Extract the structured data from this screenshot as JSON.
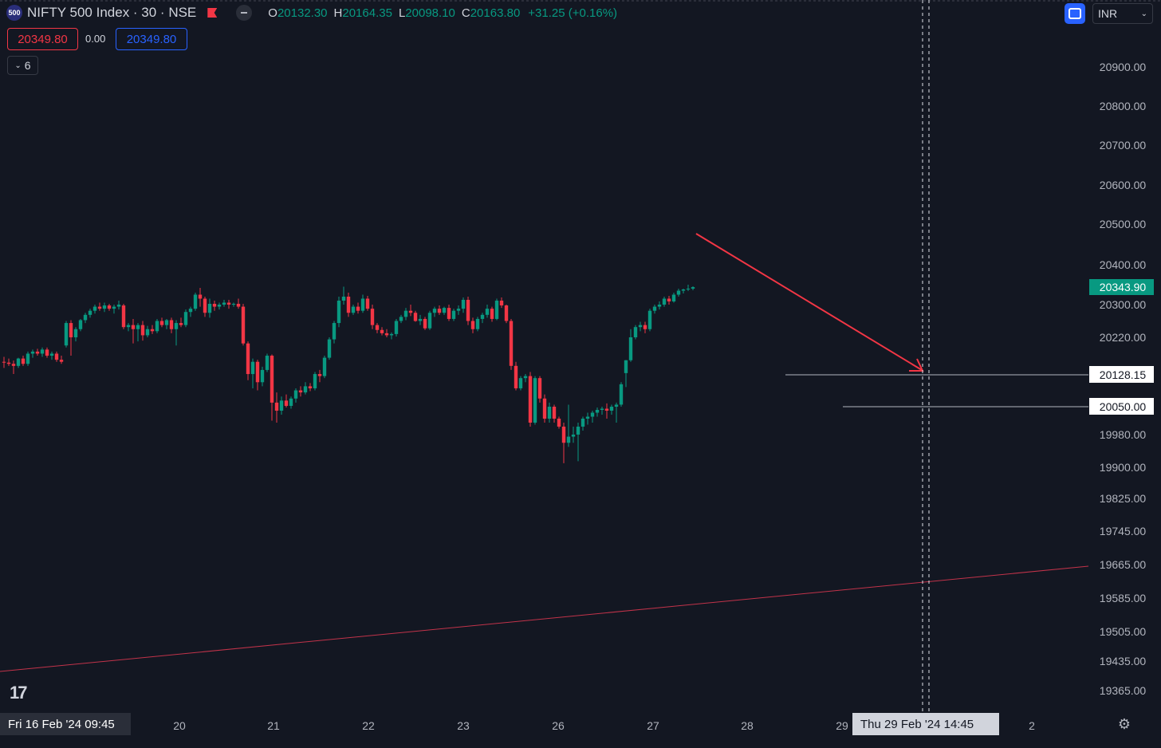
{
  "header": {
    "symbol_badge": "500",
    "symbol_title": "NIFTY 500 Index · 30 · NSE",
    "ohlc": {
      "o_label": "O",
      "o_value": "20132.30",
      "h_label": "H",
      "h_value": "20164.35",
      "l_label": "L",
      "l_value": "20098.10",
      "c_label": "C",
      "c_value": "20163.80",
      "change": "+31.25 (+0.16%)"
    }
  },
  "trade": {
    "sell_price": "20349.80",
    "spread": "0.00",
    "buy_price": "20349.80"
  },
  "indicators_toggle": {
    "count": "6",
    "icon": "chevron-down-icon"
  },
  "toolbar": {
    "fullscreen_icon": "fullscreen-icon",
    "currency": "INR",
    "currency_icon": "chevron-down-icon"
  },
  "logo": {
    "text": "17",
    "icon": "tradingview-logo-icon"
  },
  "time_axis": {
    "left_label": "Fri 16 Feb '24   09:45",
    "cursor_label": "Thu 29 Feb '24   14:45",
    "settings_icon": "settings-gear-icon"
  },
  "colors": {
    "up": "#089981",
    "down": "#f23645",
    "background": "#131722",
    "arrow": "#f23645",
    "trendline": "#c2334a"
  },
  "chart_data": {
    "type": "candlestick",
    "title": "NIFTY 500 Index · 30 · NSE",
    "xlabel": "",
    "ylabel": "",
    "y_ticks": [
      20900,
      20800,
      20700,
      20600,
      20500,
      20400,
      20300,
      20220,
      19980,
      19900,
      19825,
      19745,
      19665,
      19585,
      19505,
      19435,
      19365
    ],
    "y_axis_scale": "log",
    "x_ticks": [
      "20",
      "21",
      "22",
      "23",
      "26",
      "27",
      "28",
      "29",
      "2"
    ],
    "last_price": "20343.90",
    "price_labels": [
      "20128.15",
      "20050.00"
    ],
    "horizontal_levels": [
      20128.15,
      20050.0
    ],
    "grid": false,
    "candles": [
      {
        "o": 20160,
        "h": 20172,
        "l": 20145,
        "c": 20158
      },
      {
        "o": 20158,
        "h": 20168,
        "l": 20150,
        "c": 20155
      },
      {
        "o": 20155,
        "h": 20163,
        "l": 20130,
        "c": 20150
      },
      {
        "o": 20150,
        "h": 20170,
        "l": 20145,
        "c": 20168
      },
      {
        "o": 20168,
        "h": 20175,
        "l": 20150,
        "c": 20155
      },
      {
        "o": 20155,
        "h": 20185,
        "l": 20150,
        "c": 20180
      },
      {
        "o": 20180,
        "h": 20190,
        "l": 20170,
        "c": 20185
      },
      {
        "o": 20185,
        "h": 20192,
        "l": 20175,
        "c": 20180
      },
      {
        "o": 20180,
        "h": 20195,
        "l": 20172,
        "c": 20190
      },
      {
        "o": 20190,
        "h": 20195,
        "l": 20170,
        "c": 20175
      },
      {
        "o": 20175,
        "h": 20185,
        "l": 20165,
        "c": 20180
      },
      {
        "o": 20180,
        "h": 20185,
        "l": 20160,
        "c": 20165
      },
      {
        "o": 20165,
        "h": 20175,
        "l": 20155,
        "c": 20160
      },
      {
        "o": 20200,
        "h": 20260,
        "l": 20195,
        "c": 20255
      },
      {
        "o": 20255,
        "h": 20262,
        "l": 20175,
        "c": 20220
      },
      {
        "o": 20220,
        "h": 20245,
        "l": 20210,
        "c": 20240
      },
      {
        "o": 20240,
        "h": 20265,
        "l": 20235,
        "c": 20262
      },
      {
        "o": 20262,
        "h": 20280,
        "l": 20255,
        "c": 20275
      },
      {
        "o": 20275,
        "h": 20290,
        "l": 20268,
        "c": 20285
      },
      {
        "o": 20285,
        "h": 20300,
        "l": 20278,
        "c": 20295
      },
      {
        "o": 20295,
        "h": 20305,
        "l": 20285,
        "c": 20290
      },
      {
        "o": 20290,
        "h": 20305,
        "l": 20282,
        "c": 20298
      },
      {
        "o": 20298,
        "h": 20302,
        "l": 20285,
        "c": 20290
      },
      {
        "o": 20290,
        "h": 20300,
        "l": 20278,
        "c": 20295
      },
      {
        "o": 20295,
        "h": 20310,
        "l": 20288,
        "c": 20300
      },
      {
        "o": 20298,
        "h": 20302,
        "l": 20240,
        "c": 20245
      },
      {
        "o": 20245,
        "h": 20255,
        "l": 20235,
        "c": 20250
      },
      {
        "o": 20250,
        "h": 20265,
        "l": 20205,
        "c": 20240
      },
      {
        "o": 20240,
        "h": 20255,
        "l": 20210,
        "c": 20250
      },
      {
        "o": 20250,
        "h": 20260,
        "l": 20212,
        "c": 20225
      },
      {
        "o": 20225,
        "h": 20248,
        "l": 20220,
        "c": 20240
      },
      {
        "o": 20240,
        "h": 20250,
        "l": 20228,
        "c": 20235
      },
      {
        "o": 20235,
        "h": 20265,
        "l": 20230,
        "c": 20260
      },
      {
        "o": 20260,
        "h": 20268,
        "l": 20245,
        "c": 20250
      },
      {
        "o": 20250,
        "h": 20265,
        "l": 20240,
        "c": 20262
      },
      {
        "o": 20262,
        "h": 20268,
        "l": 20230,
        "c": 20240
      },
      {
        "o": 20240,
        "h": 20262,
        "l": 20200,
        "c": 20255
      },
      {
        "o": 20255,
        "h": 20268,
        "l": 20245,
        "c": 20250
      },
      {
        "o": 20250,
        "h": 20288,
        "l": 20245,
        "c": 20282
      },
      {
        "o": 20282,
        "h": 20295,
        "l": 20270,
        "c": 20290
      },
      {
        "o": 20290,
        "h": 20330,
        "l": 20285,
        "c": 20325
      },
      {
        "o": 20325,
        "h": 20342,
        "l": 20295,
        "c": 20315
      },
      {
        "o": 20315,
        "h": 20320,
        "l": 20270,
        "c": 20280
      },
      {
        "o": 20280,
        "h": 20315,
        "l": 20268,
        "c": 20302
      },
      {
        "o": 20302,
        "h": 20310,
        "l": 20285,
        "c": 20295
      },
      {
        "o": 20295,
        "h": 20305,
        "l": 20288,
        "c": 20300
      },
      {
        "o": 20300,
        "h": 20312,
        "l": 20295,
        "c": 20305
      },
      {
        "o": 20305,
        "h": 20312,
        "l": 20290,
        "c": 20300
      },
      {
        "o": 20300,
        "h": 20305,
        "l": 20295,
        "c": 20302
      },
      {
        "o": 20302,
        "h": 20315,
        "l": 20290,
        "c": 20295
      },
      {
        "o": 20295,
        "h": 20302,
        "l": 20200,
        "c": 20205
      },
      {
        "o": 20205,
        "h": 20210,
        "l": 20115,
        "c": 20130
      },
      {
        "o": 20130,
        "h": 20168,
        "l": 20095,
        "c": 20160
      },
      {
        "o": 20160,
        "h": 20165,
        "l": 20090,
        "c": 20110
      },
      {
        "o": 20110,
        "h": 20148,
        "l": 20100,
        "c": 20140
      },
      {
        "o": 20140,
        "h": 20180,
        "l": 20135,
        "c": 20175
      },
      {
        "o": 20175,
        "h": 20178,
        "l": 20015,
        "c": 20060
      },
      {
        "o": 20060,
        "h": 20085,
        "l": 20010,
        "c": 20040
      },
      {
        "o": 20040,
        "h": 20075,
        "l": 20030,
        "c": 20065
      },
      {
        "o": 20065,
        "h": 20080,
        "l": 20048,
        "c": 20052
      },
      {
        "o": 20052,
        "h": 20075,
        "l": 20045,
        "c": 20070
      },
      {
        "o": 20070,
        "h": 20095,
        "l": 20060,
        "c": 20090
      },
      {
        "o": 20090,
        "h": 20100,
        "l": 20075,
        "c": 20085
      },
      {
        "o": 20085,
        "h": 20110,
        "l": 20080,
        "c": 20100
      },
      {
        "o": 20100,
        "h": 20108,
        "l": 20088,
        "c": 20095
      },
      {
        "o": 20095,
        "h": 20135,
        "l": 20090,
        "c": 20130
      },
      {
        "o": 20130,
        "h": 20140,
        "l": 20110,
        "c": 20125
      },
      {
        "o": 20125,
        "h": 20175,
        "l": 20120,
        "c": 20170
      },
      {
        "o": 20170,
        "h": 20220,
        "l": 20165,
        "c": 20215
      },
      {
        "o": 20215,
        "h": 20260,
        "l": 20205,
        "c": 20255
      },
      {
        "o": 20255,
        "h": 20320,
        "l": 20245,
        "c": 20310
      },
      {
        "o": 20310,
        "h": 20345,
        "l": 20300,
        "c": 20320
      },
      {
        "o": 20320,
        "h": 20330,
        "l": 20270,
        "c": 20280
      },
      {
        "o": 20280,
        "h": 20300,
        "l": 20275,
        "c": 20295
      },
      {
        "o": 20295,
        "h": 20305,
        "l": 20278,
        "c": 20285
      },
      {
        "o": 20285,
        "h": 20325,
        "l": 20280,
        "c": 20315
      },
      {
        "o": 20315,
        "h": 20322,
        "l": 20285,
        "c": 20290
      },
      {
        "o": 20290,
        "h": 20300,
        "l": 20240,
        "c": 20250
      },
      {
        "o": 20250,
        "h": 20255,
        "l": 20230,
        "c": 20238
      },
      {
        "o": 20238,
        "h": 20245,
        "l": 20225,
        "c": 20230
      },
      {
        "o": 20230,
        "h": 20240,
        "l": 20220,
        "c": 20225
      },
      {
        "o": 20225,
        "h": 20232,
        "l": 20215,
        "c": 20228
      },
      {
        "o": 20228,
        "h": 20265,
        "l": 20222,
        "c": 20260
      },
      {
        "o": 20260,
        "h": 20275,
        "l": 20255,
        "c": 20270
      },
      {
        "o": 20270,
        "h": 20292,
        "l": 20262,
        "c": 20285
      },
      {
        "o": 20285,
        "h": 20300,
        "l": 20272,
        "c": 20280
      },
      {
        "o": 20280,
        "h": 20285,
        "l": 20258,
        "c": 20260
      },
      {
        "o": 20260,
        "h": 20275,
        "l": 20250,
        "c": 20265
      },
      {
        "o": 20265,
        "h": 20270,
        "l": 20238,
        "c": 20242
      },
      {
        "o": 20242,
        "h": 20285,
        "l": 20238,
        "c": 20280
      },
      {
        "o": 20280,
        "h": 20295,
        "l": 20270,
        "c": 20290
      },
      {
        "o": 20290,
        "h": 20298,
        "l": 20275,
        "c": 20280
      },
      {
        "o": 20280,
        "h": 20295,
        "l": 20275,
        "c": 20292
      },
      {
        "o": 20292,
        "h": 20300,
        "l": 20260,
        "c": 20265
      },
      {
        "o": 20265,
        "h": 20290,
        "l": 20260,
        "c": 20285
      },
      {
        "o": 20285,
        "h": 20298,
        "l": 20275,
        "c": 20290
      },
      {
        "o": 20290,
        "h": 20318,
        "l": 20280,
        "c": 20312
      },
      {
        "o": 20312,
        "h": 20320,
        "l": 20250,
        "c": 20260
      },
      {
        "o": 20260,
        "h": 20268,
        "l": 20230,
        "c": 20240
      },
      {
        "o": 20240,
        "h": 20270,
        "l": 20235,
        "c": 20265
      },
      {
        "o": 20265,
        "h": 20280,
        "l": 20255,
        "c": 20275
      },
      {
        "o": 20275,
        "h": 20300,
        "l": 20268,
        "c": 20290
      },
      {
        "o": 20290,
        "h": 20295,
        "l": 20258,
        "c": 20265
      },
      {
        "o": 20265,
        "h": 20315,
        "l": 20262,
        "c": 20310
      },
      {
        "o": 20310,
        "h": 20318,
        "l": 20292,
        "c": 20298
      },
      {
        "o": 20298,
        "h": 20300,
        "l": 20255,
        "c": 20260
      },
      {
        "o": 20260,
        "h": 20265,
        "l": 20140,
        "c": 20150
      },
      {
        "o": 20150,
        "h": 20160,
        "l": 20090,
        "c": 20095
      },
      {
        "o": 20095,
        "h": 20125,
        "l": 20090,
        "c": 20120
      },
      {
        "o": 20120,
        "h": 20130,
        "l": 20110,
        "c": 20125
      },
      {
        "o": 20125,
        "h": 20135,
        "l": 20000,
        "c": 20010
      },
      {
        "o": 20010,
        "h": 20125,
        "l": 20005,
        "c": 20120
      },
      {
        "o": 20120,
        "h": 20125,
        "l": 20060,
        "c": 20070
      },
      {
        "o": 20070,
        "h": 20080,
        "l": 20010,
        "c": 20020
      },
      {
        "o": 20020,
        "h": 20060,
        "l": 20010,
        "c": 20050
      },
      {
        "o": 20050,
        "h": 20055,
        "l": 20010,
        "c": 20020
      },
      {
        "o": 20020,
        "h": 20025,
        "l": 19995,
        "c": 20000
      },
      {
        "o": 20000,
        "h": 20010,
        "l": 19910,
        "c": 19960
      },
      {
        "o": 19960,
        "h": 20055,
        "l": 19950,
        "c": 19975
      },
      {
        "o": 19975,
        "h": 20000,
        "l": 19960,
        "c": 19980
      },
      {
        "o": 19980,
        "h": 20010,
        "l": 19915,
        "c": 20000
      },
      {
        "o": 20000,
        "h": 20025,
        "l": 19990,
        "c": 20020
      },
      {
        "o": 20020,
        "h": 20035,
        "l": 20005,
        "c": 20025
      },
      {
        "o": 20025,
        "h": 20040,
        "l": 20010,
        "c": 20035
      },
      {
        "o": 20035,
        "h": 20048,
        "l": 20025,
        "c": 20042
      },
      {
        "o": 20042,
        "h": 20050,
        "l": 20030,
        "c": 20045
      },
      {
        "o": 20045,
        "h": 20058,
        "l": 20020,
        "c": 20040
      },
      {
        "o": 20040,
        "h": 20055,
        "l": 20030,
        "c": 20050
      },
      {
        "o": 20050,
        "h": 20060,
        "l": 20010,
        "c": 20055
      },
      {
        "o": 20055,
        "h": 20110,
        "l": 20050,
        "c": 20105
      },
      {
        "o": 20132.3,
        "h": 20164.35,
        "l": 20098.1,
        "c": 20163.8
      },
      {
        "o": 20163.8,
        "h": 20240,
        "l": 20160,
        "c": 20220
      },
      {
        "o": 20220,
        "h": 20250,
        "l": 20215,
        "c": 20245
      },
      {
        "o": 20245,
        "h": 20258,
        "l": 20235,
        "c": 20250
      },
      {
        "o": 20250,
        "h": 20258,
        "l": 20230,
        "c": 20240
      },
      {
        "o": 20240,
        "h": 20290,
        "l": 20235,
        "c": 20285
      },
      {
        "o": 20285,
        "h": 20300,
        "l": 20278,
        "c": 20295
      },
      {
        "o": 20295,
        "h": 20308,
        "l": 20288,
        "c": 20300
      },
      {
        "o": 20300,
        "h": 20320,
        "l": 20295,
        "c": 20315
      },
      {
        "o": 20315,
        "h": 20322,
        "l": 20300,
        "c": 20308
      },
      {
        "o": 20308,
        "h": 20330,
        "l": 20305,
        "c": 20325
      },
      {
        "o": 20325,
        "h": 20340,
        "l": 20320,
        "c": 20335
      },
      {
        "o": 20335,
        "h": 20340,
        "l": 20328,
        "c": 20338
      },
      {
        "o": 20338,
        "h": 20350,
        "l": 20334,
        "c": 20340
      },
      {
        "o": 20340,
        "h": 20346,
        "l": 20336,
        "c": 20343.9
      }
    ]
  }
}
